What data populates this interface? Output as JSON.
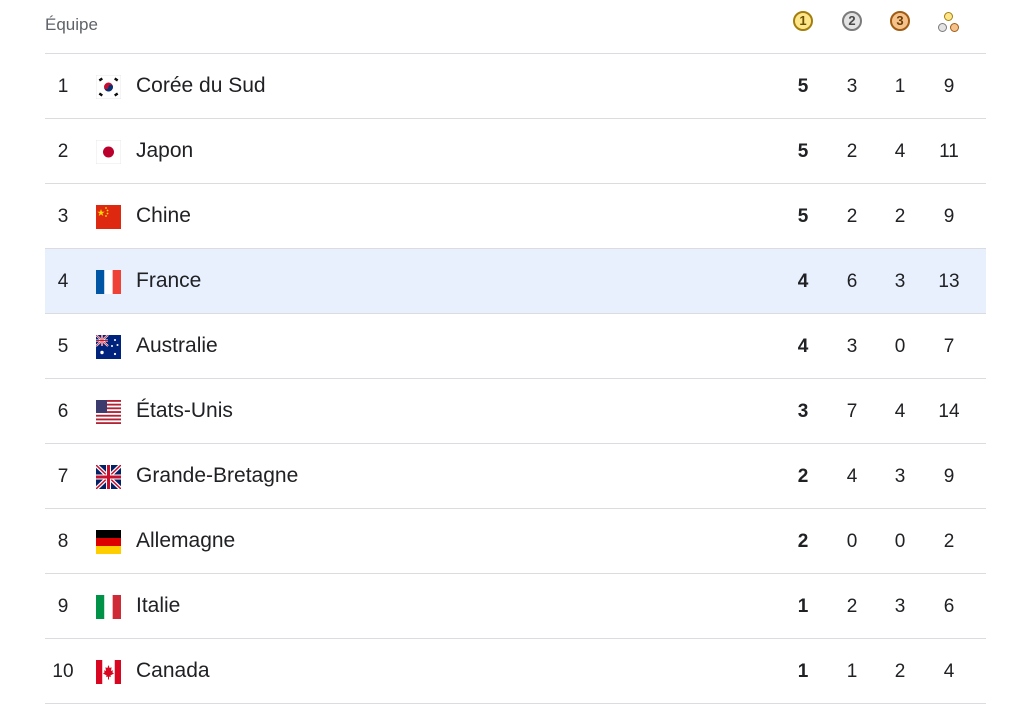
{
  "header": {
    "team_label": "Équipe",
    "gold_label": "1",
    "silver_label": "2",
    "bronze_label": "3",
    "total_icon": "medals-total-icon"
  },
  "colors": {
    "gold": "#fde68a",
    "silver": "#e3e3e3",
    "bronze": "#f6c28b",
    "highlight_row": "#e8f0fe"
  },
  "rows": [
    {
      "rank": "1",
      "country": "Corée du Sud",
      "flag": "south-korea-flag",
      "gold": "5",
      "silver": "3",
      "bronze": "1",
      "total": "9"
    },
    {
      "rank": "2",
      "country": "Japon",
      "flag": "japan-flag",
      "gold": "5",
      "silver": "2",
      "bronze": "4",
      "total": "11"
    },
    {
      "rank": "3",
      "country": "Chine",
      "flag": "china-flag",
      "gold": "5",
      "silver": "2",
      "bronze": "2",
      "total": "9"
    },
    {
      "rank": "4",
      "country": "France",
      "flag": "france-flag",
      "gold": "4",
      "silver": "6",
      "bronze": "3",
      "total": "13",
      "highlighted": true
    },
    {
      "rank": "5",
      "country": "Australie",
      "flag": "australia-flag",
      "gold": "4",
      "silver": "3",
      "bronze": "0",
      "total": "7"
    },
    {
      "rank": "6",
      "country": "États-Unis",
      "flag": "usa-flag",
      "gold": "3",
      "silver": "7",
      "bronze": "4",
      "total": "14"
    },
    {
      "rank": "7",
      "country": "Grande-Bretagne",
      "flag": "uk-flag",
      "gold": "2",
      "silver": "4",
      "bronze": "3",
      "total": "9"
    },
    {
      "rank": "8",
      "country": "Allemagne",
      "flag": "germany-flag",
      "gold": "2",
      "silver": "0",
      "bronze": "0",
      "total": "2"
    },
    {
      "rank": "9",
      "country": "Italie",
      "flag": "italy-flag",
      "gold": "1",
      "silver": "2",
      "bronze": "3",
      "total": "6"
    },
    {
      "rank": "10",
      "country": "Canada",
      "flag": "canada-flag",
      "gold": "1",
      "silver": "1",
      "bronze": "2",
      "total": "4"
    }
  ]
}
